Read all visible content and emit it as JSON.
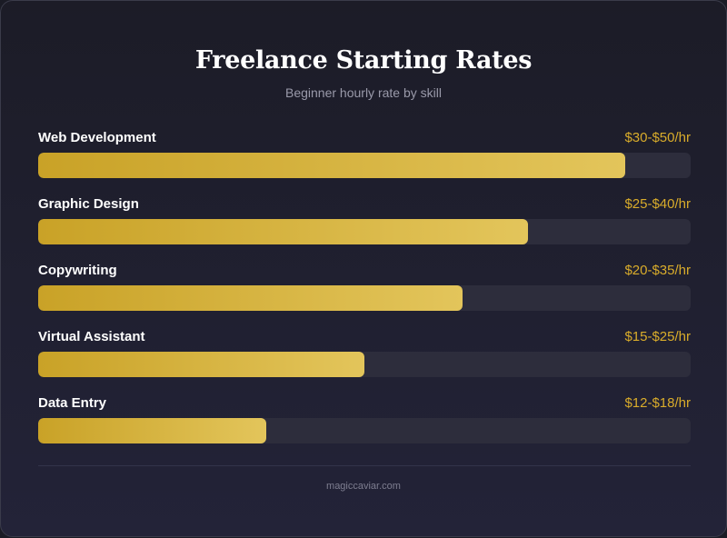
{
  "header": {
    "title": "Freelance Starting Rates",
    "subtitle": "Beginner hourly rate by skill"
  },
  "footer": {
    "text": "magiccaviar.com"
  },
  "colors": {
    "bar_start": "#c9a227",
    "bar_end": "#e3c55b",
    "value_text": "#d9ac2b",
    "track": "#2d2d3c"
  },
  "chart_data": {
    "type": "bar",
    "orientation": "horizontal",
    "title": "Freelance Starting Rates",
    "subtitle": "Beginner hourly rate by skill",
    "categories": [
      "Web Development",
      "Graphic Design",
      "Copywriting",
      "Virtual Assistant",
      "Data Entry"
    ],
    "value_labels": [
      "$30-$50/hr",
      "$25-$40/hr",
      "$20-$35/hr",
      "$15-$25/hr",
      "$12-$18/hr"
    ],
    "values": [
      0.9,
      0.75,
      0.65,
      0.5,
      0.35
    ],
    "xlim": [
      0,
      1
    ],
    "grid": false
  }
}
